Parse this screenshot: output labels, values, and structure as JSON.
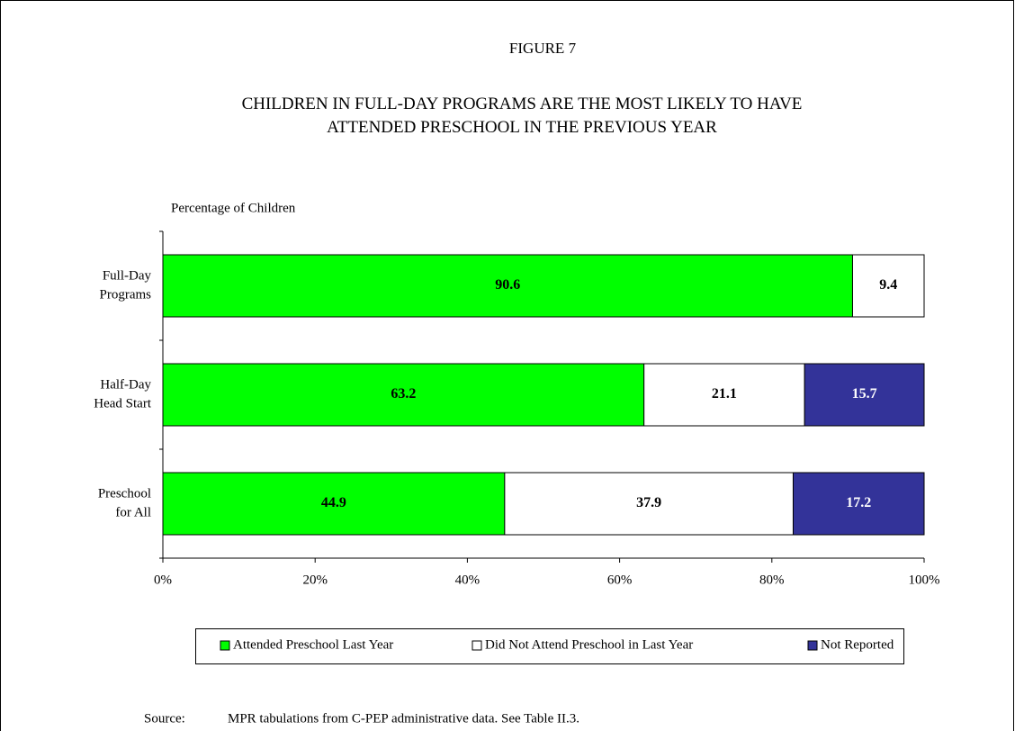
{
  "chart_data": {
    "type": "stacked_bar_horizontal",
    "figure_label": "FIGURE 7",
    "title": "CHILDREN IN FULL-DAY PROGRAMS ARE THE MOST LIKELY TO HAVE\nATTENDED PRESCHOOL IN THE PREVIOUS YEAR",
    "axis_label": "Percentage of Children",
    "categories": [
      "Full-Day\nPrograms",
      "Half-Day\nHead Start",
      "Preschool\nfor All"
    ],
    "series": [
      {
        "name": "Attended Preschool Last Year",
        "color": "#00ff00",
        "label_color": "#000000",
        "values": [
          90.6,
          63.2,
          44.9
        ]
      },
      {
        "name": "Did Not Attend Preschool in Last Year",
        "color": "#ffffff",
        "label_color": "#000000",
        "values": [
          9.4,
          21.1,
          37.9
        ]
      },
      {
        "name": "Not Reported",
        "color": "#333399",
        "label_color": "#ffffff",
        "values": [
          null,
          15.7,
          17.2
        ]
      }
    ],
    "xlim": [
      0,
      100
    ],
    "xticks": [
      {
        "value": 0,
        "label": "0%"
      },
      {
        "value": 20,
        "label": "20%"
      },
      {
        "value": 40,
        "label": "40%"
      },
      {
        "value": 60,
        "label": "60%"
      },
      {
        "value": 80,
        "label": "80%"
      },
      {
        "value": 100,
        "label": "100%"
      }
    ],
    "legend": "bottom",
    "source_label": "Source:",
    "source": "MPR tabulations from C-PEP administrative data.  See Table II.3."
  }
}
